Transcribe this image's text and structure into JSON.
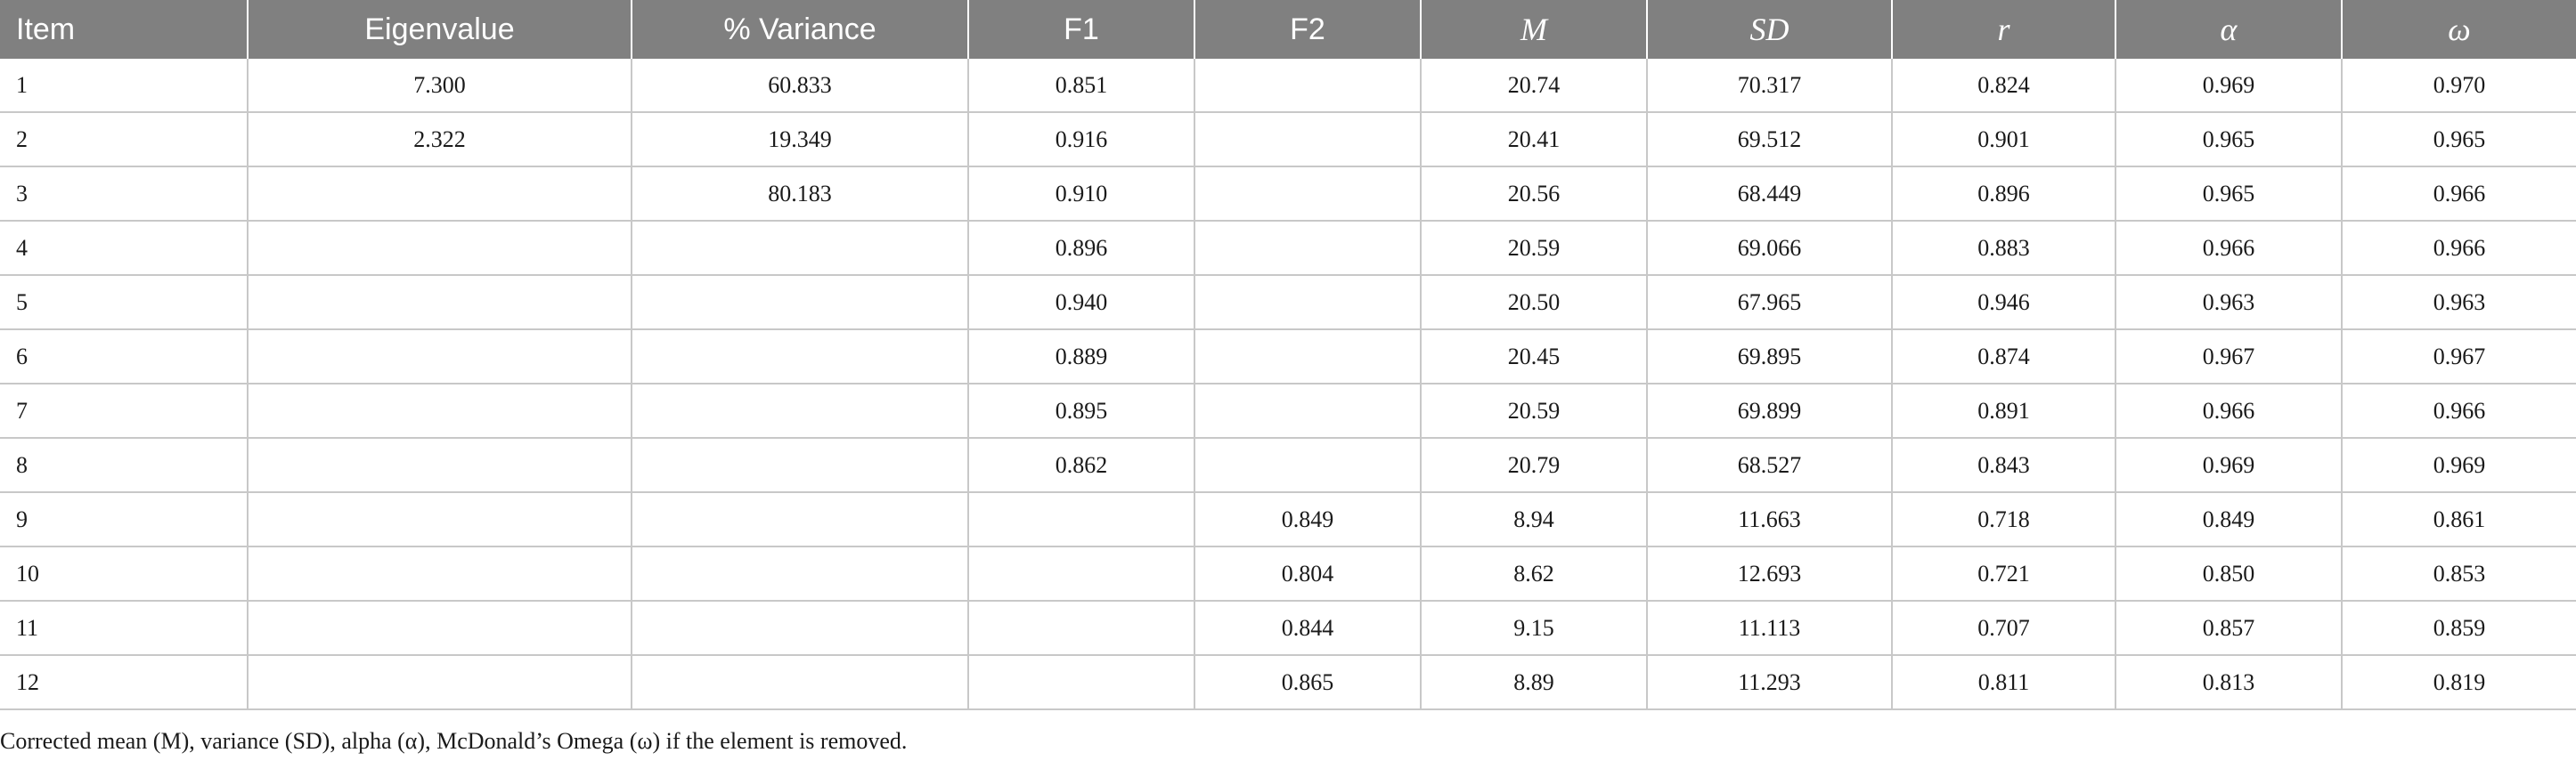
{
  "table": {
    "headers": [
      "Item",
      "Eigenvalue",
      "% Variance",
      "F1",
      "F2",
      "M",
      "SD",
      "r",
      "α",
      "ω"
    ],
    "rows": [
      [
        "1",
        "7.300",
        "60.833",
        "0.851",
        "",
        "20.74",
        "70.317",
        "0.824",
        "0.969",
        "0.970"
      ],
      [
        "2",
        "2.322",
        "19.349",
        "0.916",
        "",
        "20.41",
        "69.512",
        "0.901",
        "0.965",
        "0.965"
      ],
      [
        "3",
        "",
        "80.183",
        "0.910",
        "",
        "20.56",
        "68.449",
        "0.896",
        "0.965",
        "0.966"
      ],
      [
        "4",
        "",
        "",
        "0.896",
        "",
        "20.59",
        "69.066",
        "0.883",
        "0.966",
        "0.966"
      ],
      [
        "5",
        "",
        "",
        "0.940",
        "",
        "20.50",
        "67.965",
        "0.946",
        "0.963",
        "0.963"
      ],
      [
        "6",
        "",
        "",
        "0.889",
        "",
        "20.45",
        "69.895",
        "0.874",
        "0.967",
        "0.967"
      ],
      [
        "7",
        "",
        "",
        "0.895",
        "",
        "20.59",
        "69.899",
        "0.891",
        "0.966",
        "0.966"
      ],
      [
        "8",
        "",
        "",
        "0.862",
        "",
        "20.79",
        "68.527",
        "0.843",
        "0.969",
        "0.969"
      ],
      [
        "9",
        "",
        "",
        "",
        "0.849",
        "8.94",
        "11.663",
        "0.718",
        "0.849",
        "0.861"
      ],
      [
        "10",
        "",
        "",
        "",
        "0.804",
        "8.62",
        "12.693",
        "0.721",
        "0.850",
        "0.853"
      ],
      [
        "11",
        "",
        "",
        "",
        "0.844",
        "9.15",
        "11.113",
        "0.707",
        "0.857",
        "0.859"
      ],
      [
        "12",
        "",
        "",
        "",
        "0.865",
        "8.89",
        "11.293",
        "0.811",
        "0.813",
        "0.819"
      ]
    ]
  },
  "footnote": "Corrected mean (M), variance (SD), alpha (α), McDonald’s Omega (ω) if the element is removed.",
  "colors": {
    "header_background": "#808080",
    "header_text": "#ffffff",
    "grid_line": "#c8c8c8"
  }
}
